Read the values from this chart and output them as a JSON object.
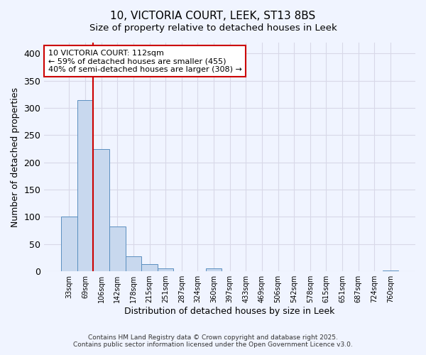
{
  "title_line1": "10, VICTORIA COURT, LEEK, ST13 8BS",
  "title_line2": "Size of property relative to detached houses in Leek",
  "xlabel": "Distribution of detached houses by size in Leek",
  "ylabel": "Number of detached properties",
  "bar_categories": [
    "33sqm",
    "69sqm",
    "106sqm",
    "142sqm",
    "178sqm",
    "215sqm",
    "251sqm",
    "287sqm",
    "324sqm",
    "360sqm",
    "397sqm",
    "433sqm",
    "469sqm",
    "506sqm",
    "542sqm",
    "578sqm",
    "615sqm",
    "651sqm",
    "687sqm",
    "724sqm",
    "760sqm"
  ],
  "bar_heights": [
    100,
    315,
    225,
    82,
    27,
    13,
    5,
    0,
    0,
    5,
    0,
    0,
    0,
    0,
    0,
    0,
    0,
    0,
    0,
    0,
    2
  ],
  "bar_color": "#c8d8ee",
  "bar_edge_color": "#5a8fc0",
  "vline_color": "#cc0000",
  "annotation_text": "10 VICTORIA COURT: 112sqm\n← 59% of detached houses are smaller (455)\n40% of semi-detached houses are larger (308) →",
  "annotation_box_color": "#ffffff",
  "annotation_box_edge": "#cc0000",
  "ylim": [
    0,
    420
  ],
  "yticks": [
    0,
    50,
    100,
    150,
    200,
    250,
    300,
    350,
    400
  ],
  "background_color": "#f0f4ff",
  "grid_color": "#d8d8e8",
  "footer_line1": "Contains HM Land Registry data © Crown copyright and database right 2025.",
  "footer_line2": "Contains public sector information licensed under the Open Government Licence v3.0."
}
